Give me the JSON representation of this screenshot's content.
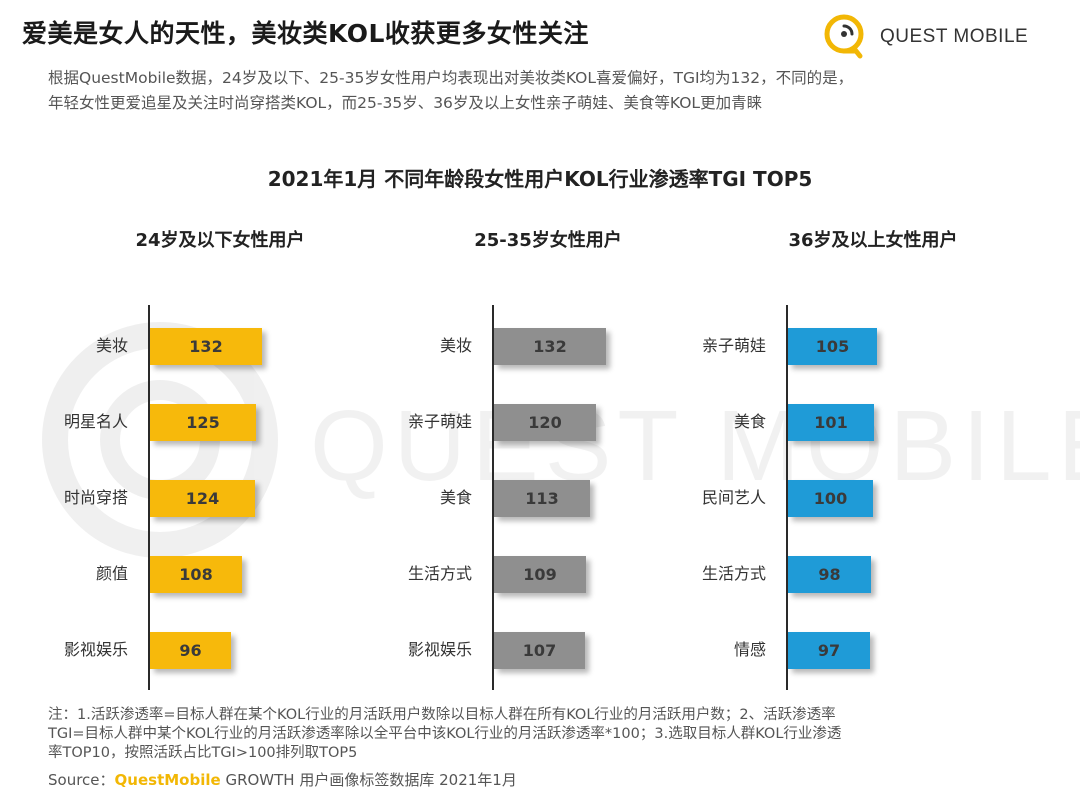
{
  "headline": "爱美是女人的天性，美妆类KOL收获更多女性关注",
  "logo": {
    "text": "QUEST MOBILE",
    "color": "#f2b705"
  },
  "intro": [
    "根据QuestMobile数据，24岁及以下、25-35岁女性用户均表现出对美妆类KOL喜爱偏好，TGI均为132，不同的是，",
    "年轻女性更爱追星及关注时尚穿搭类KOL，而25-35岁、36岁及以上女性亲子萌娃、美食等KOL更加青睐"
  ],
  "watermark": "QUEST MOBILE",
  "chart_title": "2021年1月 不同年龄段女性用户KOL行业渗透率TGI TOP5",
  "chart_data": [
    {
      "type": "bar",
      "orientation": "horizontal",
      "title": "24岁及以下女性用户",
      "categories": [
        "美妆",
        "明星名人",
        "时尚穿搭",
        "颜值",
        "影视娱乐"
      ],
      "values": [
        132,
        125,
        124,
        108,
        96
      ],
      "labels": [
        "132",
        "125",
        "124",
        "108",
        "96"
      ],
      "color": "#f7b90b"
    },
    {
      "type": "bar",
      "orientation": "horizontal",
      "title": "25-35岁女性用户",
      "categories": [
        "美妆",
        "亲子萌娃",
        "美食",
        "生活方式",
        "影视娱乐"
      ],
      "values": [
        132,
        120,
        113,
        109,
        107
      ],
      "labels": [
        "132",
        "120",
        "113",
        "109",
        "107"
      ],
      "color": "#8f8f8f"
    },
    {
      "type": "bar",
      "orientation": "horizontal",
      "title": "36岁及以上女性用户",
      "categories": [
        "亲子萌娃",
        "美食",
        "民间艺人",
        "生活方式",
        "情感"
      ],
      "values": [
        105,
        101,
        100,
        98,
        97
      ],
      "labels": [
        "105",
        "101",
        "100",
        "98",
        "97"
      ],
      "color": "#1f9bd7"
    }
  ],
  "notes": [
    "注：1.活跃渗透率=目标人群在某个KOL行业的月活跃用户数除以目标人群在所有KOL行业的月活跃用户数；2、活跃渗透率",
    "TGI=目标人群中某个KOL行业的月活跃渗透率除以全平台中该KOL行业的月活跃渗透率*100；3.选取目标人群KOL行业渗透",
    "率TOP10，按照活跃占比TGI>100排列取TOP5"
  ],
  "source": {
    "prefix": "Source：",
    "brand": "QuestMobile",
    "rest": " GROWTH 用户画像标签数据库 2021年1月"
  }
}
